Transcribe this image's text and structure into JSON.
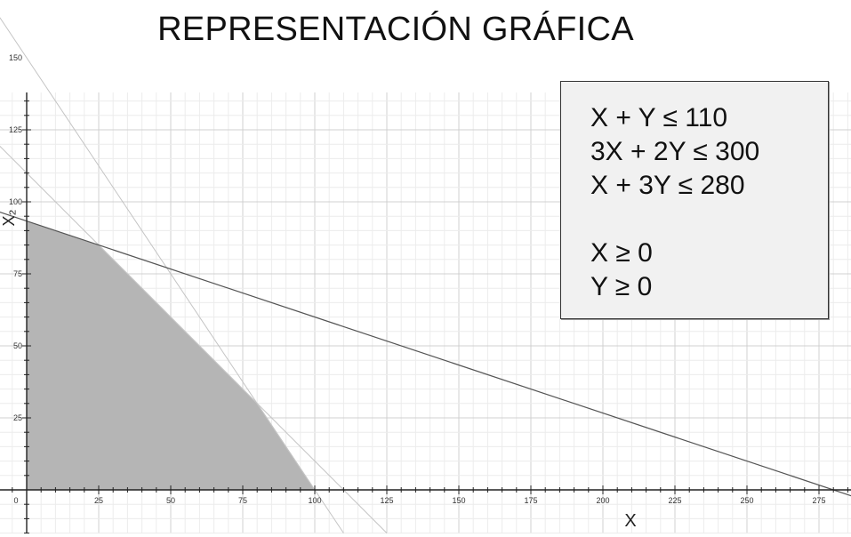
{
  "title": "REPRESENTACIÓN GRÁFICA",
  "constraints": {
    "lines": [
      "X + Y ≤ 110",
      "3X + 2Y ≤ 300",
      "X + 3Y ≤ 280"
    ],
    "nonnegativity": [
      "X ≥ 0",
      "Y ≥ 0"
    ]
  },
  "chart_data": {
    "type": "line",
    "title": "REPRESENTACIÓN GRÁFICA",
    "xlabel": "X",
    "ylabel": "X₂",
    "xlim": [
      0,
      285
    ],
    "ylim": [
      0,
      160
    ],
    "x_ticks": [
      0,
      25,
      50,
      75,
      100,
      125,
      150,
      175,
      200,
      225,
      250,
      275
    ],
    "y_ticks": [
      25,
      50,
      75,
      100,
      125,
      150
    ],
    "grid": true,
    "lines": [
      {
        "label": "X + Y ≤ 110",
        "points": [
          [
            0,
            110
          ],
          [
            110,
            0
          ]
        ],
        "color": "#c4c4c4"
      },
      {
        "label": "3X + 2Y ≤ 300",
        "points": [
          [
            0,
            150
          ],
          [
            100,
            0
          ]
        ],
        "color": "#c4c4c4"
      },
      {
        "label": "X + 3Y ≤ 280",
        "points": [
          [
            0,
            93.33
          ],
          [
            280,
            0
          ]
        ],
        "color": "#555555"
      }
    ],
    "feasible_region": {
      "vertices": [
        [
          0,
          0
        ],
        [
          0,
          93.33
        ],
        [
          25,
          85
        ],
        [
          80,
          30
        ],
        [
          100,
          0
        ]
      ],
      "color": "#b5b5b5"
    }
  }
}
